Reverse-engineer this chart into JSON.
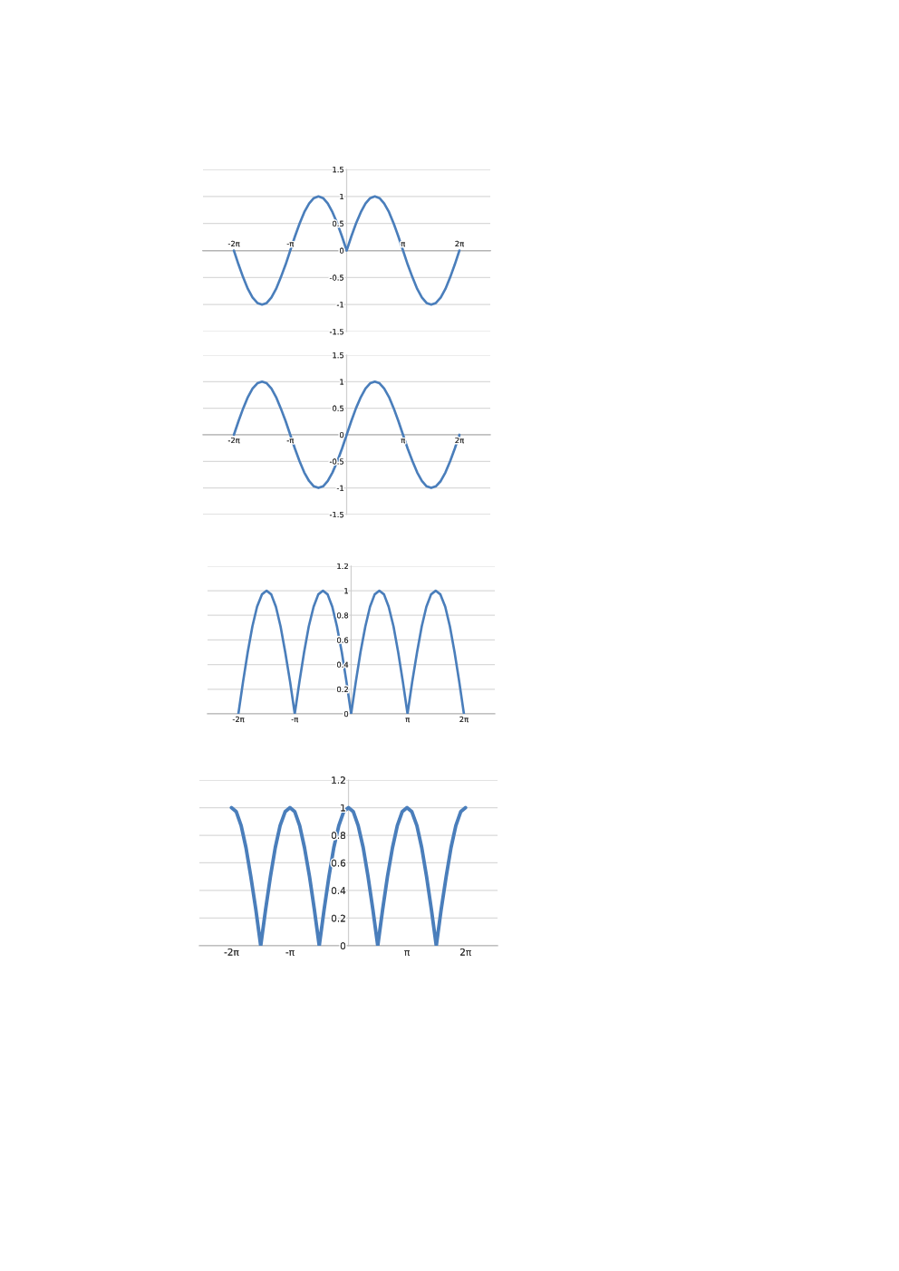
{
  "chart_data": [
    {
      "type": "line",
      "x": [
        -6.28,
        -6.02,
        -5.76,
        -5.5,
        -5.24,
        -4.97,
        -4.71,
        -4.45,
        -4.19,
        -3.93,
        -3.67,
        -3.4,
        -3.14,
        -2.88,
        -2.62,
        -2.36,
        -2.09,
        -1.83,
        -1.57,
        -1.31,
        -1.05,
        -0.79,
        -0.52,
        -0.26,
        0,
        0.26,
        0.52,
        0.79,
        1.05,
        1.31,
        1.57,
        1.83,
        2.09,
        2.36,
        2.62,
        2.88,
        3.14,
        3.4,
        3.67,
        3.93,
        4.19,
        4.45,
        4.71,
        4.97,
        5.24,
        5.5,
        5.76,
        6.02,
        6.28
      ],
      "series": [
        {
          "color": "#4a7ebb",
          "values": [
            0,
            -0.26,
            -0.5,
            -0.71,
            -0.87,
            -0.97,
            -1,
            -0.97,
            -0.87,
            -0.71,
            -0.5,
            -0.26,
            0,
            0.26,
            0.5,
            0.71,
            0.87,
            0.97,
            1,
            0.97,
            0.87,
            0.71,
            0.5,
            0.26,
            0,
            0.26,
            0.5,
            0.71,
            0.87,
            0.97,
            1,
            0.97,
            0.87,
            0.71,
            0.5,
            0.26,
            0,
            -0.26,
            -0.5,
            -0.71,
            -0.87,
            -0.97,
            -1,
            -0.97,
            -0.87,
            -0.71,
            -0.5,
            -0.26,
            0
          ]
        }
      ],
      "xlim": [
        -8,
        8
      ],
      "xticks": [
        {
          "value": -6.28,
          "label": "-2π"
        },
        {
          "value": -3.14,
          "label": "-π"
        },
        {
          "value": 3.14,
          "label": "π"
        },
        {
          "value": 6.28,
          "label": "2π"
        }
      ],
      "ylim": [
        -1.5,
        1.5
      ],
      "yticks": [
        -1.5,
        -1,
        -0.5,
        0,
        0.5,
        1,
        1.5
      ],
      "grid": "y"
    },
    {
      "type": "line",
      "x": [
        -6.28,
        -6.02,
        -5.76,
        -5.5,
        -5.24,
        -4.97,
        -4.71,
        -4.45,
        -4.19,
        -3.93,
        -3.67,
        -3.4,
        -3.14,
        -2.88,
        -2.62,
        -2.36,
        -2.09,
        -1.83,
        -1.57,
        -1.31,
        -1.05,
        -0.79,
        -0.52,
        -0.26,
        0,
        0.26,
        0.52,
        0.79,
        1.05,
        1.31,
        1.57,
        1.83,
        2.09,
        2.36,
        2.62,
        2.88,
        3.14,
        3.4,
        3.67,
        3.93,
        4.19,
        4.45,
        4.71,
        4.97,
        5.24,
        5.5,
        5.76,
        6.02,
        6.28
      ],
      "series": [
        {
          "color": "#4a7ebb",
          "values": [
            0,
            0.26,
            0.5,
            0.71,
            0.87,
            0.97,
            1,
            0.97,
            0.87,
            0.71,
            0.5,
            0.26,
            0,
            -0.26,
            -0.5,
            -0.71,
            -0.87,
            -0.97,
            -1,
            -0.97,
            -0.87,
            -0.71,
            -0.5,
            -0.26,
            0,
            0.26,
            0.5,
            0.71,
            0.87,
            0.97,
            1,
            0.97,
            0.87,
            0.71,
            0.5,
            0.26,
            0,
            -0.26,
            -0.5,
            -0.71,
            -0.87,
            -0.97,
            -1,
            -0.97,
            -0.87,
            -0.71,
            -0.5,
            -0.26,
            0
          ]
        }
      ],
      "xlim": [
        -8,
        8
      ],
      "xticks": [
        {
          "value": -6.28,
          "label": "-2π"
        },
        {
          "value": -3.14,
          "label": "-π"
        },
        {
          "value": 3.14,
          "label": "π"
        },
        {
          "value": 6.28,
          "label": "2π"
        }
      ],
      "ylim": [
        -1.5,
        1.5
      ],
      "yticks": [
        -1.5,
        -1,
        -0.5,
        0,
        0.5,
        1,
        1.5
      ],
      "grid": "y"
    },
    {
      "type": "line",
      "x": [
        -6.28,
        -6.02,
        -5.76,
        -5.5,
        -5.24,
        -4.97,
        -4.71,
        -4.45,
        -4.19,
        -3.93,
        -3.67,
        -3.4,
        -3.14,
        -2.88,
        -2.62,
        -2.36,
        -2.09,
        -1.83,
        -1.57,
        -1.31,
        -1.05,
        -0.79,
        -0.52,
        -0.26,
        0,
        0.26,
        0.52,
        0.79,
        1.05,
        1.31,
        1.57,
        1.83,
        2.09,
        2.36,
        2.62,
        2.88,
        3.14,
        3.4,
        3.67,
        3.93,
        4.19,
        4.45,
        4.71,
        4.97,
        5.24,
        5.5,
        5.76,
        6.02,
        6.28
      ],
      "series": [
        {
          "color": "#4a7ebb",
          "values": [
            0,
            0.26,
            0.5,
            0.71,
            0.87,
            0.97,
            1,
            0.97,
            0.87,
            0.71,
            0.5,
            0.26,
            0,
            0.26,
            0.5,
            0.71,
            0.87,
            0.97,
            1,
            0.97,
            0.87,
            0.71,
            0.5,
            0.26,
            0,
            0.26,
            0.5,
            0.71,
            0.87,
            0.97,
            1,
            0.97,
            0.87,
            0.71,
            0.5,
            0.26,
            0,
            0.26,
            0.5,
            0.71,
            0.87,
            0.97,
            1,
            0.97,
            0.87,
            0.71,
            0.5,
            0.26,
            0
          ]
        }
      ],
      "xlim": [
        -8,
        8
      ],
      "xticks": [
        {
          "value": -6.28,
          "label": "-2π"
        },
        {
          "value": -3.14,
          "label": "-π"
        },
        {
          "value": 3.14,
          "label": "π"
        },
        {
          "value": 6.28,
          "label": "2π"
        }
      ],
      "ylim": [
        0,
        1.2
      ],
      "yticks": [
        0,
        0.2,
        0.4,
        0.6,
        0.8,
        1,
        1.2
      ],
      "grid": "y"
    },
    {
      "type": "line",
      "x": [
        -6.28,
        -6.02,
        -5.76,
        -5.5,
        -5.24,
        -4.97,
        -4.71,
        -4.45,
        -4.19,
        -3.93,
        -3.67,
        -3.4,
        -3.14,
        -2.88,
        -2.62,
        -2.36,
        -2.09,
        -1.83,
        -1.57,
        -1.31,
        -1.05,
        -0.79,
        -0.52,
        -0.26,
        0,
        0.26,
        0.52,
        0.79,
        1.05,
        1.31,
        1.57,
        1.83,
        2.09,
        2.36,
        2.62,
        2.88,
        3.14,
        3.4,
        3.67,
        3.93,
        4.19,
        4.45,
        4.71,
        4.97,
        5.24,
        5.5,
        5.76,
        6.02,
        6.28
      ],
      "series": [
        {
          "color": "#4a7ebb",
          "values": [
            1,
            0.97,
            0.87,
            0.71,
            0.5,
            0.26,
            0,
            0.26,
            0.5,
            0.71,
            0.87,
            0.97,
            1,
            0.97,
            0.87,
            0.71,
            0.5,
            0.26,
            0,
            0.26,
            0.5,
            0.71,
            0.87,
            0.97,
            1,
            0.97,
            0.87,
            0.71,
            0.5,
            0.26,
            0,
            0.26,
            0.5,
            0.71,
            0.87,
            0.97,
            1,
            0.97,
            0.87,
            0.71,
            0.5,
            0.26,
            0,
            0.26,
            0.5,
            0.71,
            0.87,
            0.97,
            1
          ]
        }
      ],
      "xlim": [
        -8,
        8
      ],
      "xticks": [
        {
          "value": -6.28,
          "label": "-2π"
        },
        {
          "value": -3.14,
          "label": "-π"
        },
        {
          "value": 3.14,
          "label": "π"
        },
        {
          "value": 6.28,
          "label": "2π"
        }
      ],
      "ylim": [
        0,
        1.2
      ],
      "yticks": [
        0,
        0.2,
        0.4,
        0.6,
        0.8,
        1,
        1.2
      ],
      "grid": "y"
    }
  ]
}
